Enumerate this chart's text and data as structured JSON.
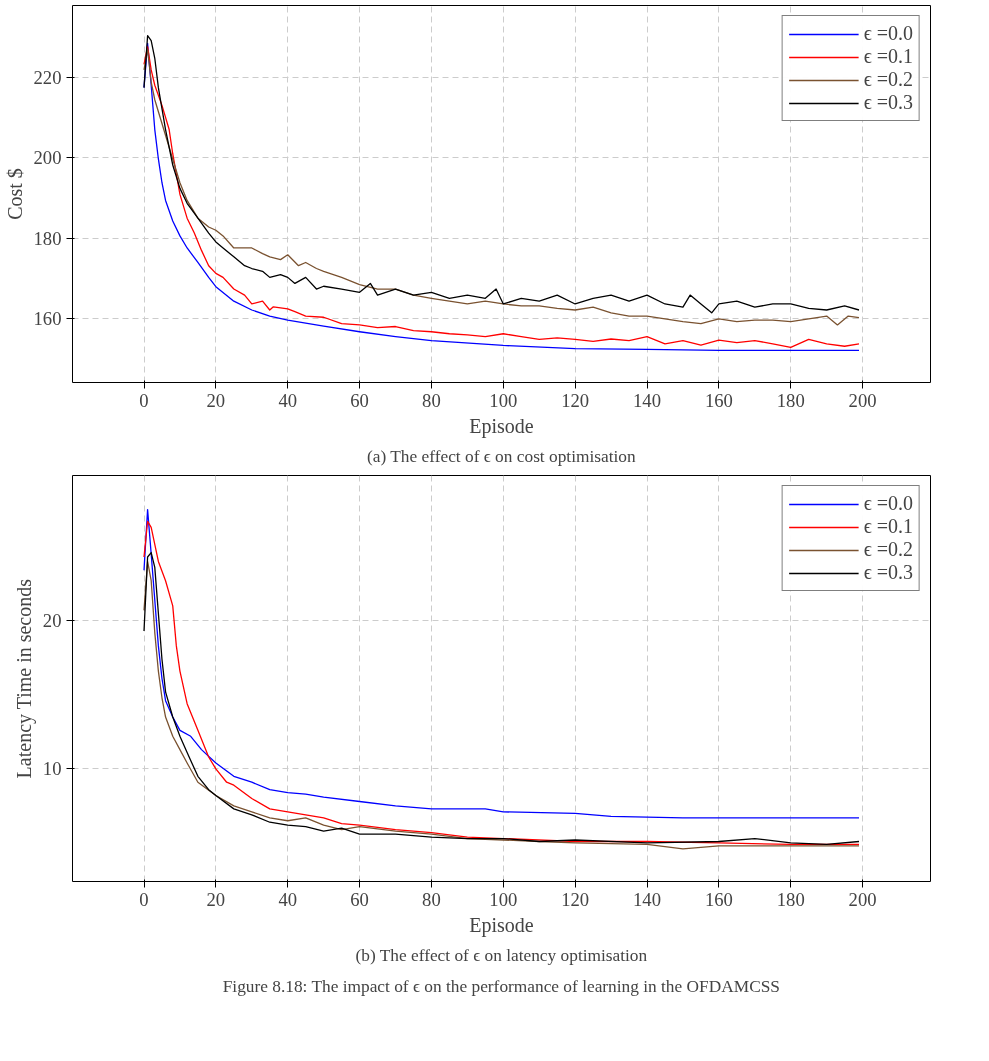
{
  "chart_data": [
    {
      "type": "line",
      "xlabel": "Episode",
      "ylabel": "Cost $",
      "xlim": [
        -19.9,
        218.9
      ],
      "ylim": [
        144.2,
        237.8
      ],
      "xticks": [
        0,
        20,
        40,
        60,
        80,
        100,
        120,
        140,
        160,
        180,
        200
      ],
      "yticks": [
        160,
        180,
        200,
        220
      ],
      "grid": true,
      "legend": "top right",
      "line_style": "solid",
      "annotations": [
        "(a) The effect of ϵ on cost optimisation"
      ],
      "series": [
        {
          "name": "ϵ =0.0",
          "color": "#0000ff",
          "x": [
            0,
            1,
            2,
            3,
            4,
            5,
            6,
            8,
            10,
            12,
            15,
            18,
            20,
            25,
            30,
            35,
            40,
            50,
            60,
            70,
            80,
            100,
            120,
            140,
            160,
            199
          ],
          "values": [
            217.4,
            228.4,
            218,
            207,
            199.7,
            193.8,
            189.4,
            184.3,
            180.6,
            177.6,
            174,
            170.3,
            168,
            164.4,
            162.2,
            160.7,
            159.7,
            158.2,
            156.8,
            155.6,
            154.6,
            153.4,
            152.6,
            152.4,
            152.2,
            152.2
          ]
        },
        {
          "name": "ϵ =0.1",
          "color": "#ff0000",
          "x": [
            0,
            1,
            2,
            3,
            5,
            7,
            8,
            10,
            12,
            14,
            16,
            18,
            20,
            22,
            25,
            28,
            30,
            33,
            35,
            36,
            40,
            42,
            45,
            50,
            55,
            60,
            65,
            70,
            75,
            80,
            85,
            90,
            95,
            100,
            105,
            110,
            115,
            120,
            125,
            130,
            135,
            140,
            145,
            150,
            155,
            160,
            165,
            170,
            175,
            180,
            185,
            190,
            195,
            199
          ],
          "values": [
            223.2,
            227.6,
            221.8,
            218,
            213,
            207,
            201,
            190.9,
            185,
            181.3,
            177,
            173.2,
            171.3,
            170.3,
            167.4,
            165.9,
            163.7,
            164.4,
            162.2,
            163,
            162.5,
            161.8,
            160.7,
            160.4,
            158.8,
            158.5,
            157.8,
            158.1,
            157.1,
            156.8,
            156.3,
            156,
            155.6,
            156.3,
            155.6,
            154.9,
            155.3,
            154.9,
            154.4,
            155,
            154.6,
            155.6,
            153.8,
            154.6,
            153.5,
            154.7,
            154.1,
            154.6,
            153.8,
            152.9,
            154.9,
            153.8,
            153.2,
            153.8
          ]
        },
        {
          "name": "ϵ =0.2",
          "color": "#7a5230",
          "x": [
            0,
            1,
            2,
            3,
            5,
            7,
            10,
            12,
            15,
            18,
            20,
            22,
            25,
            30,
            33,
            35,
            38,
            40,
            43,
            45,
            48,
            50,
            55,
            60,
            65,
            70,
            75,
            80,
            85,
            90,
            95,
            100,
            105,
            110,
            115,
            120,
            125,
            130,
            135,
            140,
            145,
            150,
            155,
            160,
            165,
            170,
            175,
            180,
            185,
            190,
            193,
            196,
            199
          ],
          "values": [
            221.8,
            226.9,
            218.8,
            214.4,
            208.5,
            202.6,
            193.8,
            189.4,
            185,
            182.8,
            182,
            180.6,
            177.6,
            177.6,
            176.2,
            175.4,
            174.7,
            175.9,
            173.2,
            174,
            172.5,
            171.8,
            170.3,
            168.5,
            167.4,
            167.4,
            165.9,
            165.1,
            164.4,
            163.7,
            164.4,
            163.7,
            163.2,
            163.2,
            162.6,
            162.2,
            162.9,
            161.5,
            160.7,
            160.7,
            160,
            159.3,
            158.8,
            160,
            159.3,
            159.7,
            159.7,
            159.3,
            160,
            160.7,
            158.5,
            160.7,
            160.3
          ]
        },
        {
          "name": "ϵ =0.3",
          "color": "#000000",
          "x": [
            0,
            1,
            2,
            3,
            4,
            6,
            8,
            10,
            12,
            15,
            18,
            20,
            22,
            25,
            28,
            30,
            33,
            35,
            38,
            40,
            42,
            45,
            48,
            50,
            55,
            60,
            63,
            65,
            70,
            75,
            80,
            85,
            90,
            95,
            98,
            100,
            105,
            110,
            115,
            120,
            125,
            130,
            135,
            140,
            145,
            150,
            152,
            155,
            158,
            160,
            165,
            170,
            175,
            180,
            185,
            190,
            195,
            199
          ],
          "values": [
            217.4,
            230.3,
            229.1,
            224.7,
            217.4,
            207,
            198.2,
            192.4,
            188.7,
            185,
            181.3,
            179.1,
            177.6,
            175.4,
            173.2,
            172.5,
            171.8,
            170.3,
            171,
            170.3,
            168.8,
            170.3,
            167.4,
            168.1,
            167.4,
            166.6,
            168.8,
            165.9,
            167.4,
            165.9,
            166.6,
            165.1,
            165.9,
            165.1,
            167.4,
            163.7,
            165.1,
            164.4,
            165.9,
            163.7,
            165.1,
            165.9,
            164.4,
            165.9,
            163.7,
            162.9,
            165.9,
            163.7,
            161.5,
            163.7,
            164.4,
            162.9,
            163.7,
            163.7,
            162.6,
            162.2,
            163.2,
            162.2
          ]
        }
      ]
    },
    {
      "type": "line",
      "xlabel": "Episode",
      "ylabel": "Latency Time in seconds",
      "xlim": [
        -19.9,
        218.9
      ],
      "ylim": [
        2.4,
        29.8
      ],
      "xticks": [
        0,
        20,
        40,
        60,
        80,
        100,
        120,
        140,
        160,
        180,
        200
      ],
      "yticks": [
        10,
        20
      ],
      "grid": true,
      "legend": "top right",
      "line_style": "solid",
      "annotations": [
        "(b) The effect of ϵ on latency optimisation",
        "Figure 8.18: The impact of ϵ on the performance of learning in the OFDAMCSS"
      ],
      "series": [
        {
          "name": "ϵ =0.0",
          "color": "#0000ff",
          "x": [
            0,
            1,
            2,
            3,
            4,
            5,
            6,
            8,
            10,
            13,
            16,
            20,
            25,
            30,
            35,
            40,
            45,
            50,
            60,
            70,
            80,
            95,
            100,
            120,
            130,
            150,
            199
          ],
          "values": [
            23.4,
            27.5,
            24.5,
            21.4,
            18.3,
            16.1,
            14.6,
            13.5,
            12.6,
            12.2,
            11.3,
            10.4,
            9.5,
            9.1,
            8.6,
            8.4,
            8.3,
            8.1,
            7.8,
            7.5,
            7.3,
            7.3,
            7.1,
            7.0,
            6.8,
            6.7,
            6.7
          ]
        },
        {
          "name": "ϵ =0.1",
          "color": "#ff0000",
          "x": [
            0,
            1,
            2,
            4,
            6,
            8,
            9,
            10,
            12,
            15,
            18,
            20,
            23,
            25,
            30,
            35,
            40,
            45,
            50,
            55,
            60,
            70,
            80,
            90,
            100,
            120,
            140,
            160,
            180,
            199
          ],
          "values": [
            24.3,
            26.7,
            26.3,
            24,
            22.7,
            21,
            18.3,
            16.6,
            14.4,
            12.6,
            10.8,
            10,
            9.1,
            8.9,
            8,
            7.3,
            7.1,
            6.9,
            6.7,
            6.3,
            6.2,
            5.9,
            5.7,
            5.4,
            5.3,
            5.1,
            5.1,
            5.0,
            4.9,
            4.9
          ]
        },
        {
          "name": "ϵ =0.2",
          "color": "#7a5230",
          "x": [
            0,
            1,
            2,
            3,
            4,
            5,
            6,
            8,
            10,
            12,
            15,
            20,
            25,
            30,
            35,
            40,
            45,
            50,
            55,
            60,
            70,
            80,
            90,
            100,
            110,
            120,
            140,
            150,
            160,
            180,
            199
          ],
          "values": [
            20.7,
            24,
            22.7,
            19.2,
            16.6,
            14.8,
            13.5,
            12.2,
            11.3,
            10.4,
            9.1,
            8.2,
            7.5,
            7.1,
            6.7,
            6.5,
            6.7,
            6.2,
            5.9,
            6.1,
            5.8,
            5.6,
            5.3,
            5.2,
            5.1,
            5.0,
            4.9,
            4.6,
            4.8,
            4.8,
            4.8
          ]
        },
        {
          "name": "ϵ =0.3",
          "color": "#000000",
          "x": [
            0,
            1,
            2,
            3,
            4,
            5,
            6,
            8,
            10,
            12,
            15,
            18,
            20,
            25,
            30,
            35,
            40,
            45,
            50,
            55,
            60,
            70,
            80,
            90,
            100,
            110,
            120,
            140,
            160,
            170,
            180,
            190,
            199
          ],
          "values": [
            19.3,
            24.3,
            24.6,
            23.6,
            20.5,
            17.4,
            15.2,
            13.5,
            12.2,
            11.1,
            9.5,
            8.6,
            8.2,
            7.3,
            6.9,
            6.4,
            6.2,
            6.1,
            5.8,
            6.0,
            5.6,
            5.6,
            5.4,
            5.3,
            5.3,
            5.1,
            5.2,
            5.0,
            5.1,
            5.3,
            5.0,
            4.9,
            5.1
          ]
        }
      ]
    }
  ]
}
